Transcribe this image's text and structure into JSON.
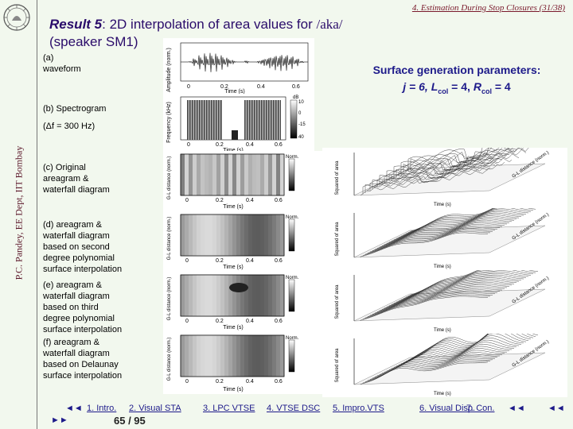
{
  "header": {
    "section": "4. Estimation During Stop Closures (31/38)",
    "vertical_text": "P.C. Pandey, EE Dept, IIT Bombay"
  },
  "title": {
    "prefix": "Result 5",
    "main": ": 2D interpolation of area values for ",
    "ipa": "/aka/",
    "line2": "(speaker SM1)"
  },
  "params": {
    "line1": "Surface generation parameters:",
    "j": "j = 6, ",
    "lcol": "L",
    "lcol_sub": "col",
    "lcol_val": " = 4, ",
    "rcol": "R",
    "rcol_sub": "col",
    "rcol_val": " = 4"
  },
  "labels": {
    "a": [
      "(a)",
      "waveform"
    ],
    "b": [
      "(b) Spectrogram",
      "(Δf = 300 Hz)"
    ],
    "c": [
      "(c) Original",
      "areagram &",
      "waterfall diagram"
    ],
    "d": [
      "(d) areagram &",
      "waterfall diagram",
      "based on second",
      "degree polynomial",
      "surface interpolation"
    ],
    "e": [
      "(e) areagram &",
      "waterfall diagram",
      "based on third",
      "degree polynomial",
      "surface interpolation"
    ],
    "f": [
      "(f) areagram &",
      "waterfall diagram",
      "based on Delaunay",
      "surface interpolation"
    ]
  },
  "plots": {
    "waveform_ylabel": "Amplitude (norm.)",
    "xlabel": "Time (s)",
    "spec_ylabel": "Frequency (kHz)",
    "spec_unit": "dB",
    "spec_scale": [
      "10",
      "0",
      "-15",
      "40"
    ],
    "area_ylabel": "G-L distance (norm.)",
    "norm_label": "Norm.",
    "ticks_time": [
      "0",
      "0.2",
      "0.4",
      "0.6"
    ],
    "waterfall_zlabel": "Squared of area",
    "waterfall_xlabel": "Time (s)",
    "waterfall_ylabel": "G-L distance (norm.)"
  },
  "nav": {
    "back": "◄◄",
    "items": [
      "1. Intro.",
      "2. Visual STA",
      "3. LPC VTSE",
      "4. VTSE DSC",
      "5. Impro.VTS",
      "6. Visual Disp.",
      "7. Con."
    ],
    "ff": "►►",
    "page": "65 / 95",
    "last": "◄◄"
  },
  "colors": {
    "title": "#2a0b6a",
    "params": "#1d1a8a",
    "section": "#7a1a2c",
    "background": "#f2f8ee"
  }
}
